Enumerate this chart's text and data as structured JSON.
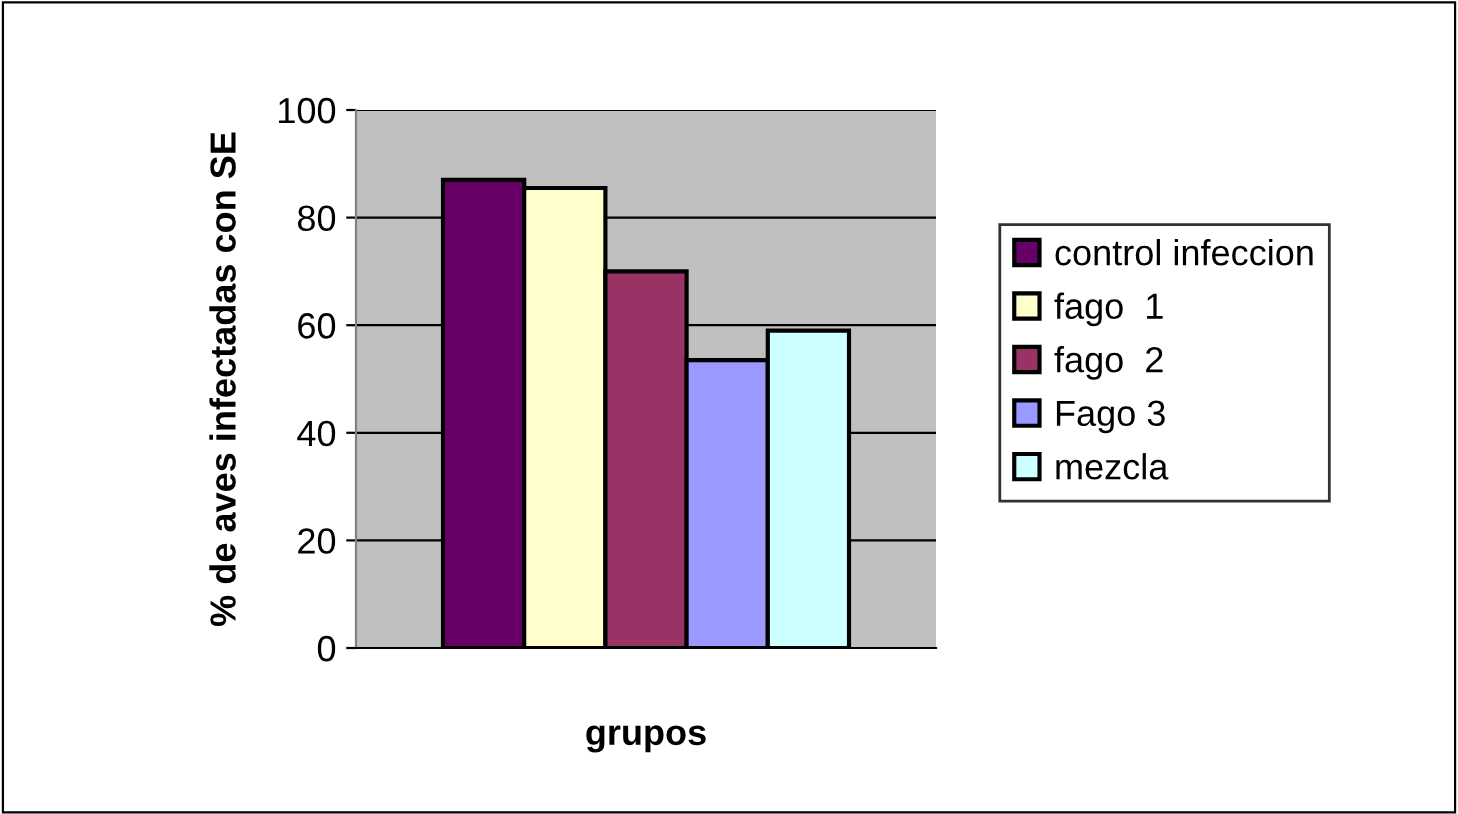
{
  "chart_data": {
    "type": "bar",
    "ylabel": "% de aves infectadas con SE",
    "xlabel": "grupos",
    "categories": [
      null
    ],
    "series": [
      {
        "name": "control infeccion",
        "color": "#660066",
        "values": [
          87
        ]
      },
      {
        "name": "fago  1",
        "color": "#ffffcc",
        "values": [
          85.5
        ]
      },
      {
        "name": "fago  2",
        "color": "#993366",
        "values": [
          70
        ]
      },
      {
        "name": "Fago 3",
        "color": "#9999ff",
        "values": [
          53.5
        ]
      },
      {
        "name": "mezcla",
        "color": "#ccffff",
        "values": [
          59
        ]
      }
    ],
    "ylim": [
      0,
      100
    ],
    "yticks": [
      0,
      20,
      40,
      60,
      80,
      100
    ],
    "grid": "y",
    "legend": "right"
  }
}
